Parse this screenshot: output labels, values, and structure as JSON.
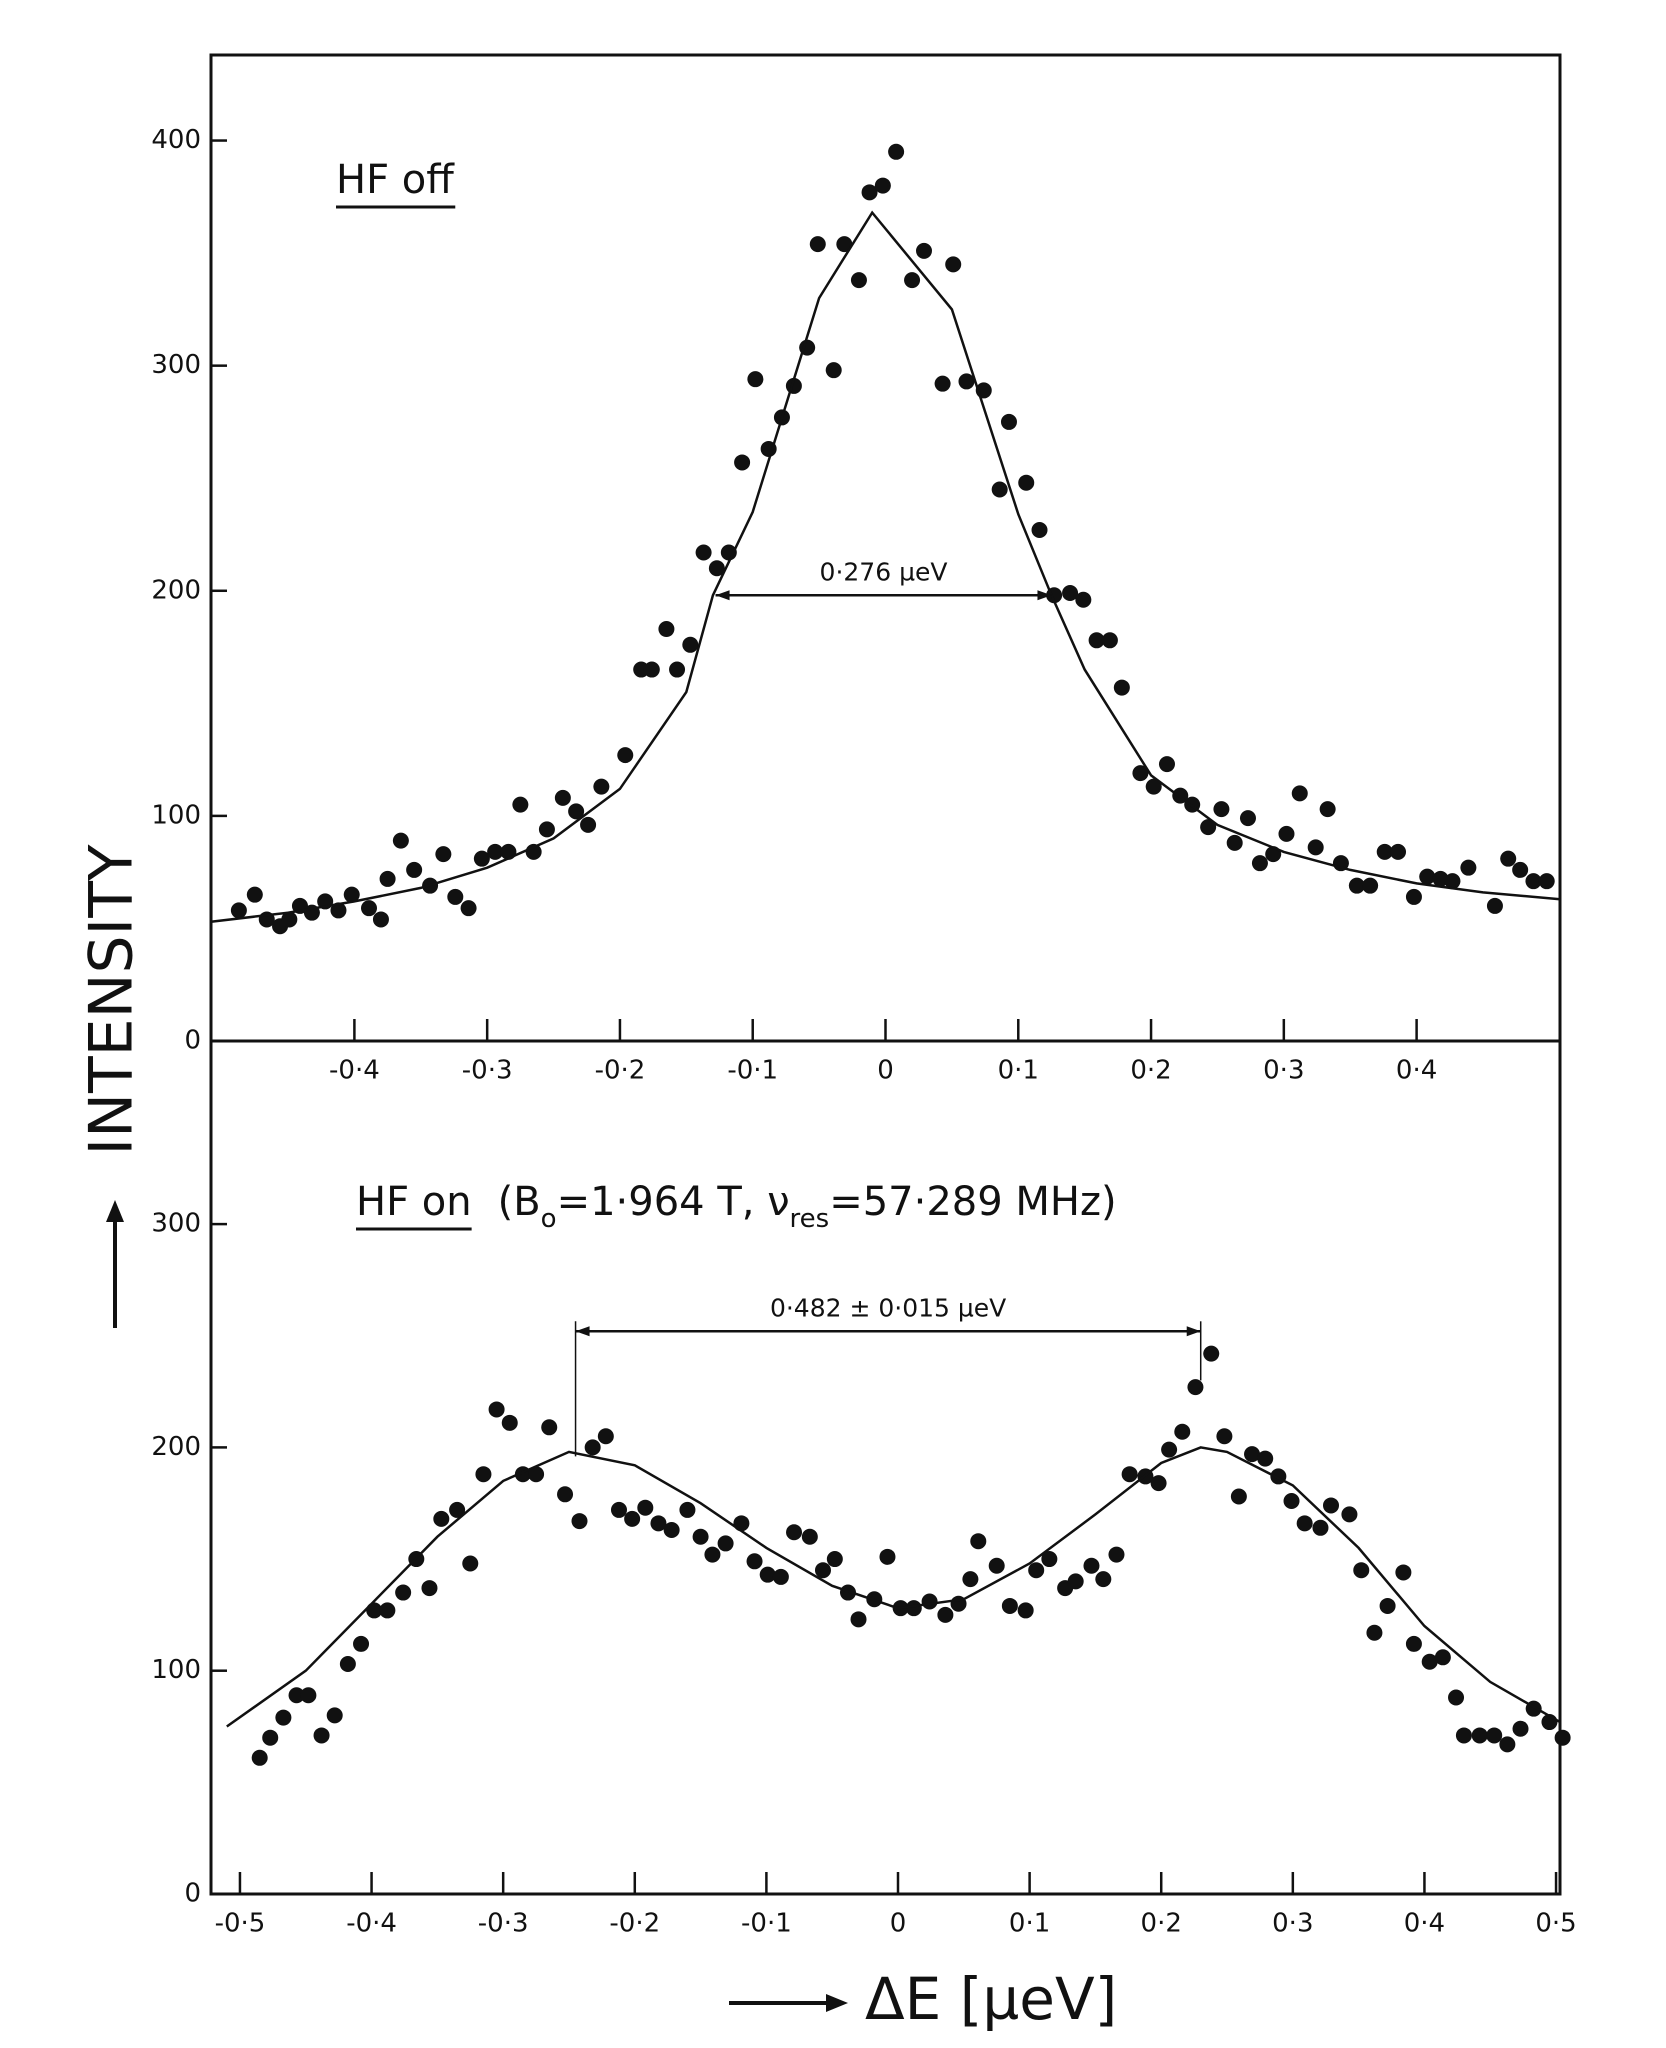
{
  "figure": {
    "ylabel": "INTENSITY",
    "xlabel": "ΔE [µeV]"
  },
  "chart_data": [
    {
      "type": "scatter",
      "label": "HF off",
      "width": {
        "text": "0·276 µeV",
        "span": [
          -0.128,
          0.125
        ],
        "y": 198
      },
      "xlim": [
        -0.508,
        0.508
      ],
      "ylim": [
        0,
        438
      ],
      "xticks": [
        {
          "value": -0.4,
          "label": "-0·4"
        },
        {
          "value": -0.3,
          "label": "-0·3"
        },
        {
          "value": -0.2,
          "label": "-0·2"
        },
        {
          "value": -0.1,
          "label": "-0·1"
        },
        0,
        {
          "value": 0.1,
          "label": "0·1"
        },
        {
          "value": 0.2,
          "label": "0·2"
        },
        {
          "value": 0.3,
          "label": "0·3"
        },
        {
          "value": 0.4,
          "label": "0·4"
        }
      ],
      "yticks": [
        0,
        100,
        200,
        300,
        400
      ],
      "series": [
        {
          "color": "#111",
          "x": [
            -0.487,
            -0.475,
            -0.466,
            -0.456,
            -0.449,
            -0.441,
            -0.432,
            -0.422,
            -0.412,
            -0.402,
            -0.389,
            -0.38,
            -0.375,
            -0.365,
            -0.355,
            -0.343,
            -0.333,
            -0.324,
            -0.314,
            -0.304,
            -0.294,
            -0.284,
            -0.275,
            -0.265,
            -0.255,
            -0.243,
            -0.233,
            -0.224,
            -0.214,
            -0.196,
            -0.184,
            -0.176,
            -0.165,
            -0.157,
            -0.147,
            -0.137,
            -0.127,
            -0.118,
            -0.108,
            -0.098,
            -0.088,
            -0.078,
            -0.069,
            -0.059,
            -0.051,
            -0.039,
            -0.031,
            -0.02,
            -0.012,
            -0.002,
            0.008,
            0.02,
            0.029,
            0.043,
            0.051,
            0.061,
            0.074,
            0.086,
            0.093,
            0.106,
            0.116,
            0.127,
            0.139,
            0.149,
            0.159,
            0.169,
            0.178,
            0.192,
            0.202,
            0.212,
            0.222,
            0.231,
            0.243,
            0.253,
            0.263,
            0.273,
            0.282,
            0.292,
            0.302,
            0.312,
            0.324,
            0.333,
            0.343,
            0.355,
            0.365,
            0.376,
            0.386,
            0.398,
            0.408,
            0.418,
            0.427,
            0.439,
            0.459,
            0.469,
            0.478,
            0.488,
            0.498
          ],
          "values": [
            58,
            65,
            54,
            51,
            54,
            60,
            57,
            62,
            58,
            65,
            59,
            54,
            72,
            89,
            76,
            69,
            83,
            64,
            59,
            81,
            84,
            84,
            105,
            84,
            94,
            108,
            102,
            96,
            113,
            127,
            165,
            165,
            183,
            165,
            176,
            217,
            210,
            217,
            257,
            294,
            263,
            277,
            291,
            308,
            354,
            298,
            354,
            338,
            377,
            380,
            395,
            338,
            351,
            292,
            345,
            293,
            289,
            245,
            275,
            248,
            227,
            198,
            199,
            196,
            178,
            178,
            157,
            119,
            113,
            123,
            109,
            105,
            95,
            103,
            88,
            99,
            79,
            83,
            92,
            110,
            86,
            103,
            79,
            69,
            69,
            84,
            84,
            64,
            73,
            72,
            71,
            77,
            60,
            81,
            76,
            71,
            71
          ]
        },
        {
          "type": "line",
          "color": "#111",
          "x": [
            -0.508,
            -0.45,
            -0.4,
            -0.35,
            -0.3,
            -0.25,
            -0.2,
            -0.15,
            -0.13,
            -0.1,
            -0.05,
            -0.01,
            0.05,
            0.1,
            0.125,
            0.15,
            0.2,
            0.25,
            0.3,
            0.35,
            0.4,
            0.45,
            0.508
          ],
          "values": [
            53,
            57,
            62,
            68,
            77,
            90,
            112,
            155,
            198,
            235,
            330,
            368,
            325,
            234,
            198,
            165,
            118,
            96,
            84,
            76,
            70,
            66,
            63
          ]
        }
      ]
    },
    {
      "type": "scatter",
      "label": "HF on",
      "condition": [
        "(B",
        "o",
        "=1·964 T, ν",
        "res",
        "=57·289 MHz)"
      ],
      "width": {
        "text": "0·482 ± 0·015 µeV",
        "span": [
          -0.245,
          0.23
        ],
        "y": 252,
        "drop": [
          196,
          230
        ]
      },
      "xlim": [
        -0.522,
        0.503
      ],
      "ylim": [
        0,
        382
      ],
      "xticks": [
        {
          "value": -0.5,
          "label": "-0·5"
        },
        {
          "value": -0.4,
          "label": "-0·4"
        },
        {
          "value": -0.3,
          "label": "-0·3"
        },
        {
          "value": -0.2,
          "label": "-0·2"
        },
        {
          "value": -0.1,
          "label": "-0·1"
        },
        0,
        {
          "value": 0.1,
          "label": "0·1"
        },
        {
          "value": 0.2,
          "label": "0·2"
        },
        {
          "value": 0.3,
          "label": "0·3"
        },
        {
          "value": 0.4,
          "label": "0·4"
        },
        {
          "value": 0.5,
          "label": "0·5"
        }
      ],
      "yticks": [
        0,
        100,
        200,
        300
      ],
      "series": [
        {
          "color": "#111",
          "x": [
            -0.485,
            -0.477,
            -0.467,
            -0.457,
            -0.448,
            -0.438,
            -0.428,
            -0.418,
            -0.408,
            -0.398,
            -0.388,
            -0.376,
            -0.366,
            -0.356,
            -0.347,
            -0.335,
            -0.325,
            -0.315,
            -0.305,
            -0.295,
            -0.285,
            -0.275,
            -0.265,
            -0.253,
            -0.242,
            -0.232,
            -0.222,
            -0.212,
            -0.202,
            -0.192,
            -0.182,
            -0.172,
            -0.16,
            -0.15,
            -0.141,
            -0.131,
            -0.119,
            -0.109,
            -0.099,
            -0.089,
            -0.079,
            -0.067,
            -0.057,
            -0.048,
            -0.038,
            -0.03,
            -0.018,
            -0.008,
            0.002,
            0.012,
            0.024,
            0.036,
            0.046,
            0.055,
            0.061,
            0.075,
            0.085,
            0.097,
            0.105,
            0.115,
            0.127,
            0.135,
            0.147,
            0.156,
            0.166,
            0.176,
            0.188,
            0.198,
            0.206,
            0.216,
            0.226,
            0.238,
            0.248,
            0.259,
            0.269,
            0.279,
            0.289,
            0.299,
            0.309,
            0.321,
            0.329,
            0.343,
            0.352,
            0.362,
            0.372,
            0.384,
            0.392,
            0.404,
            0.414,
            0.424,
            0.43,
            0.442,
            0.453,
            0.463,
            0.473,
            0.483,
            0.495,
            0.505
          ],
          "values": [
            61,
            70,
            79,
            89,
            89,
            71,
            80,
            103,
            112,
            127,
            127,
            135,
            150,
            137,
            168,
            172,
            148,
            188,
            217,
            211,
            188,
            188,
            209,
            179,
            167,
            200,
            205,
            172,
            168,
            173,
            166,
            163,
            172,
            160,
            152,
            157,
            166,
            149,
            143,
            142,
            162,
            160,
            145,
            150,
            135,
            123,
            132,
            151,
            128,
            128,
            131,
            125,
            130,
            141,
            158,
            147,
            129,
            127,
            145,
            150,
            137,
            140,
            147,
            141,
            152,
            188,
            187,
            184,
            199,
            207,
            227,
            242,
            205,
            178,
            197,
            195,
            187,
            176,
            166,
            164,
            174,
            170,
            145,
            117,
            129,
            144,
            112,
            104,
            106,
            88,
            71,
            71,
            71,
            67,
            74,
            83,
            77,
            70
          ]
        },
        {
          "type": "line",
          "color": "#111",
          "x": [
            -0.51,
            -0.45,
            -0.4,
            -0.35,
            -0.3,
            -0.25,
            -0.2,
            -0.15,
            -0.1,
            -0.05,
            0,
            0.05,
            0.1,
            0.15,
            0.2,
            0.23,
            0.25,
            0.3,
            0.35,
            0.4,
            0.45,
            0.503
          ],
          "values": [
            75,
            100,
            130,
            160,
            185,
            198,
            192,
            175,
            155,
            138,
            128,
            132,
            148,
            170,
            193,
            200,
            198,
            183,
            155,
            120,
            95,
            77
          ]
        }
      ]
    }
  ]
}
